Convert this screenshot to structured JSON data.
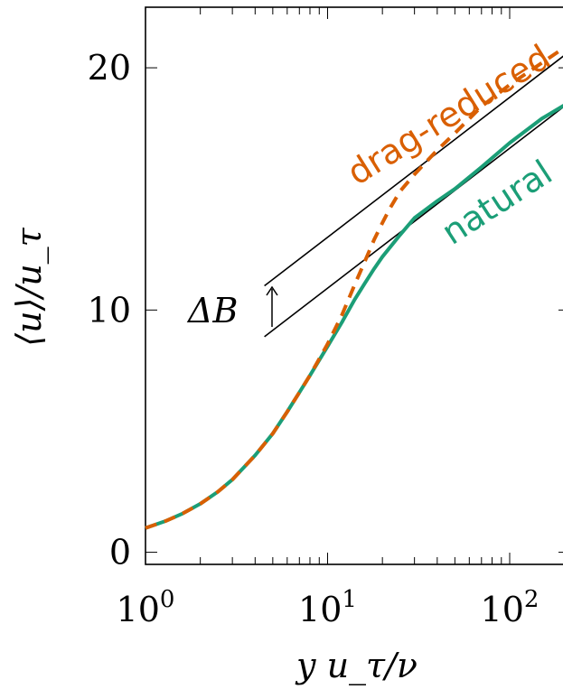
{
  "chart_data": {
    "type": "line",
    "title": "",
    "xlabel": "y u_τ/ν",
    "ylabel": "⟨u⟩/u_τ",
    "x_scale": "log",
    "xlim": [
      1,
      215
    ],
    "ylim": [
      -0.5,
      22.5
    ],
    "x_ticks": [
      1,
      10,
      100
    ],
    "x_tick_labels": [
      "10",
      "10",
      "10"
    ],
    "x_tick_exponents": [
      "0",
      "1",
      "2"
    ],
    "y_ticks": [
      0,
      10,
      20
    ],
    "y_tick_labels": [
      "0",
      "10",
      "20"
    ],
    "grid": false,
    "series": [
      {
        "name": "natural",
        "color": "#1b9e77",
        "style": "solid",
        "x": [
          1,
          1.3,
          1.6,
          2,
          2.5,
          3,
          4,
          5,
          6,
          7,
          8,
          10,
          12,
          14,
          16,
          18,
          20,
          25,
          30,
          40,
          50,
          70,
          100,
          150,
          215
        ],
        "y": [
          1.0,
          1.3,
          1.6,
          2.0,
          2.5,
          3.0,
          4.0,
          4.9,
          5.8,
          6.6,
          7.3,
          8.5,
          9.5,
          10.4,
          11.1,
          11.7,
          12.2,
          13.1,
          13.8,
          14.5,
          15.0,
          15.9,
          16.9,
          17.9,
          18.6
        ]
      },
      {
        "name": "drag-reduced",
        "color": "#d95f02",
        "style": "dashed",
        "x": [
          1,
          1.3,
          1.6,
          2,
          2.5,
          3,
          4,
          5,
          6,
          7,
          8,
          10,
          12,
          14,
          16,
          18,
          20,
          22,
          25,
          30,
          40,
          50,
          70,
          100,
          150,
          215
        ],
        "y": [
          1.0,
          1.3,
          1.6,
          2.0,
          2.5,
          3.0,
          4.0,
          4.9,
          5.8,
          6.6,
          7.3,
          8.6,
          9.8,
          11.0,
          12.0,
          12.9,
          13.6,
          14.2,
          14.9,
          15.6,
          16.6,
          17.3,
          18.4,
          19.3,
          20.2,
          21.0
        ]
      }
    ],
    "reference_lines": [
      {
        "x": [
          4.5,
          215
        ],
        "y": [
          11.0,
          20.7
        ]
      },
      {
        "x": [
          4.5,
          215
        ],
        "y": [
          8.9,
          18.6
        ]
      }
    ],
    "annotations": [
      {
        "text": "drag-reduced",
        "color": "#d95f02"
      },
      {
        "text": "natural",
        "color": "#1b9e77"
      },
      {
        "text": "ΔB"
      }
    ]
  }
}
